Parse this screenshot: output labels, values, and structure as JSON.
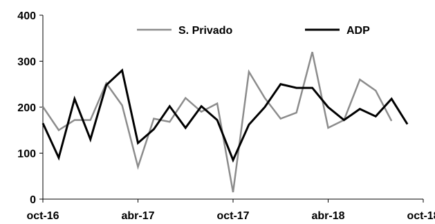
{
  "chart_data": {
    "type": "line",
    "title": "",
    "xlabel": "",
    "ylabel": "",
    "ylim": [
      0,
      400
    ],
    "yticks": [
      0,
      100,
      200,
      300,
      400
    ],
    "xlim": [
      "2016-10",
      "2018-10"
    ],
    "xticks": [
      "oct-16",
      "abr-17",
      "oct-17",
      "abr-18",
      "oct-18"
    ],
    "x": [
      "2016-10",
      "2016-11",
      "2016-12",
      "2017-01",
      "2017-02",
      "2017-03",
      "2017-04",
      "2017-05",
      "2017-06",
      "2017-07",
      "2017-08",
      "2017-09",
      "2017-10",
      "2017-11",
      "2017-12",
      "2018-01",
      "2018-02",
      "2018-03",
      "2018-04",
      "2018-05",
      "2018-06",
      "2018-07",
      "2018-08",
      "2018-09"
    ],
    "grid": false,
    "legend_position": "top",
    "series": [
      {
        "name": "S. Privado",
        "color": "#8c8c8c",
        "values": [
          201,
          150,
          172,
          172,
          252,
          204,
          70,
          175,
          168,
          220,
          190,
          208,
          15,
          277,
          220,
          175,
          188,
          320,
          155,
          172,
          260,
          236,
          170,
          null
        ]
      },
      {
        "name": "ADP",
        "color": "#000000",
        "values": [
          165,
          90,
          218,
          130,
          248,
          280,
          122,
          152,
          202,
          155,
          202,
          172,
          85,
          162,
          200,
          250,
          242,
          242,
          200,
          172,
          196,
          180,
          218,
          163
        ]
      }
    ]
  }
}
